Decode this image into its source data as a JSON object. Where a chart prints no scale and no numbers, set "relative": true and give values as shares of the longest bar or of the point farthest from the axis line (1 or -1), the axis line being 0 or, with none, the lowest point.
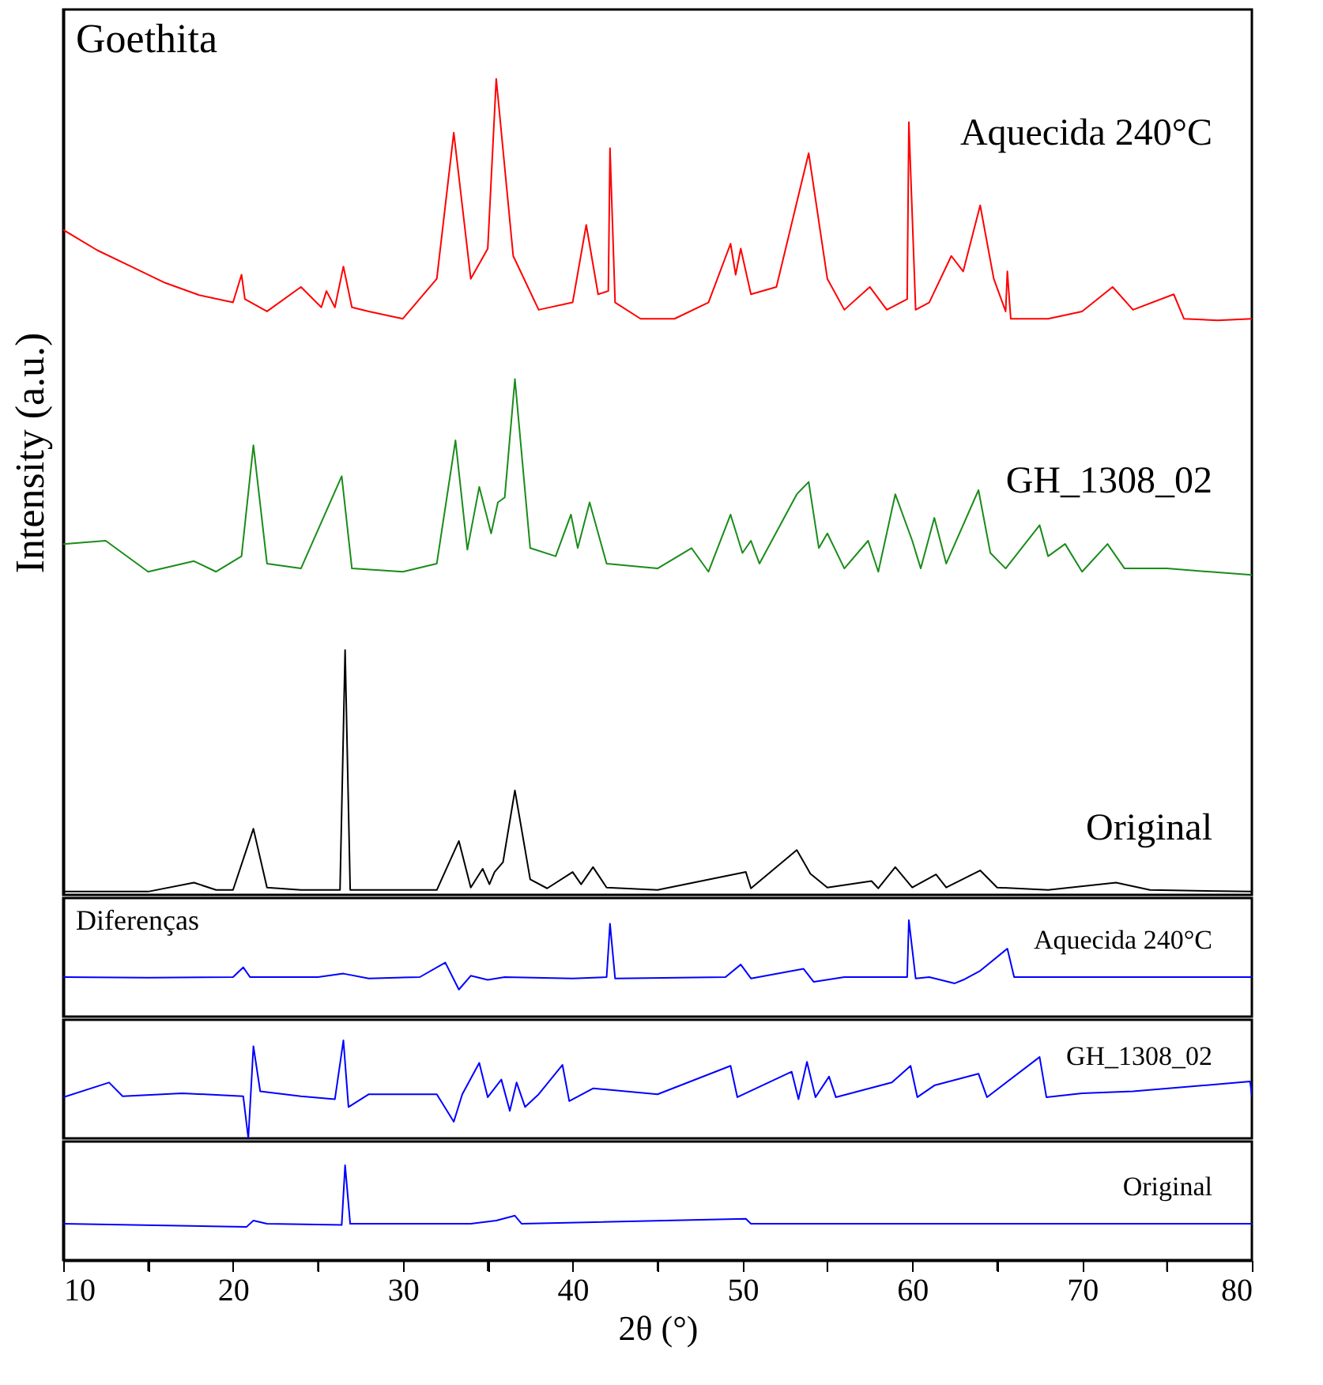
{
  "chart_data": [
    {
      "type": "line",
      "relative": true,
      "ylabel": "Intensity (a.u.)",
      "annotations": [
        "Goethita"
      ],
      "xlim": [
        10,
        80
      ],
      "tick_labels": false,
      "grid": false,
      "line_style": "solid",
      "series": [
        {
          "name": "Aquecida 240°C",
          "color": "#ff0000",
          "x": [
            10,
            12,
            14,
            16,
            18,
            20,
            20.5,
            20.7,
            22,
            24,
            25.2,
            25.5,
            26,
            26.5,
            27,
            28,
            30,
            32,
            33,
            34,
            35,
            35.5,
            36.5,
            38,
            40,
            40.8,
            41.5,
            42.1,
            42.2,
            42.5,
            44,
            46,
            48,
            49.3,
            49.6,
            49.9,
            50.5,
            52,
            53.9,
            55,
            56,
            57.5,
            58.5,
            59.7,
            59.8,
            60.2,
            61,
            62.3,
            63,
            64,
            64.8,
            65.5,
            65.6,
            65.8,
            66,
            68,
            70,
            71.8,
            73,
            75.4,
            76,
            78,
            80
          ],
          "values": [
            0.815,
            0.79,
            0.77,
            0.75,
            0.735,
            0.726,
            0.76,
            0.73,
            0.715,
            0.745,
            0.72,
            0.74,
            0.72,
            0.77,
            0.72,
            0.715,
            0.706,
            0.755,
            0.934,
            0.755,
            0.792,
            1,
            0.783,
            0.717,
            0.726,
            0.821,
            0.736,
            0.74,
            0.915,
            0.726,
            0.706,
            0.706,
            0.726,
            0.798,
            0.76,
            0.792,
            0.736,
            0.745,
            0.909,
            0.755,
            0.717,
            0.745,
            0.717,
            0.73,
            0.947,
            0.717,
            0.726,
            0.783,
            0.764,
            0.845,
            0.755,
            0.715,
            0.764,
            0.706,
            0.706,
            0.706,
            0.715,
            0.745,
            0.717,
            0.736,
            0.706,
            0.704,
            0.706
          ]
        },
        {
          "name": "GH_1308_02",
          "color": "#1a8c1a",
          "x": [
            10,
            12.5,
            15,
            17.7,
            19,
            20.5,
            21.2,
            22,
            24,
            26.4,
            27,
            30,
            32,
            33.1,
            33.8,
            34.5,
            35.2,
            35.6,
            36,
            36.6,
            37.5,
            39,
            39.9,
            40.3,
            41,
            42,
            45,
            47,
            48,
            49.3,
            50,
            50.5,
            51,
            53.2,
            53.9,
            54.5,
            55,
            56,
            57.4,
            58,
            59,
            60,
            60.5,
            61.3,
            62,
            63.9,
            64.6,
            65.5,
            67.5,
            68,
            69,
            70,
            71.5,
            72.5,
            75,
            80
          ],
          "values": [
            0.43,
            0.434,
            0.396,
            0.409,
            0.396,
            0.415,
            0.551,
            0.406,
            0.4,
            0.513,
            0.4,
            0.396,
            0.406,
            0.557,
            0.423,
            0.5,
            0.443,
            0.481,
            0.487,
            0.632,
            0.425,
            0.415,
            0.466,
            0.425,
            0.481,
            0.406,
            0.4,
            0.425,
            0.396,
            0.466,
            0.419,
            0.434,
            0.406,
            0.491,
            0.506,
            0.425,
            0.443,
            0.4,
            0.434,
            0.396,
            0.491,
            0.434,
            0.4,
            0.462,
            0.406,
            0.496,
            0.419,
            0.4,
            0.453,
            0.415,
            0.43,
            0.396,
            0.43,
            0.4,
            0.4,
            0.392
          ]
        },
        {
          "name": "Original",
          "color": "#000000",
          "x": [
            10,
            15,
            17.7,
            19,
            20,
            21.2,
            22,
            24,
            26.3,
            26.6,
            26.9,
            32,
            33.3,
            34,
            34.7,
            35.1,
            35.4,
            35.9,
            36.6,
            37.5,
            38.5,
            40,
            40.5,
            41.2,
            42,
            45,
            50.2,
            50.5,
            53.2,
            54,
            55,
            57.6,
            58,
            59,
            60,
            61.4,
            62,
            64,
            65,
            68,
            72,
            74,
            80
          ],
          "values": [
            0.004,
            0.004,
            0.015,
            0.006,
            0.006,
            0.081,
            0.009,
            0.006,
            0.006,
            0.3,
            0.006,
            0.006,
            0.066,
            0.009,
            0.032,
            0.013,
            0.028,
            0.04,
            0.128,
            0.019,
            0.008,
            0.028,
            0.013,
            0.034,
            0.009,
            0.006,
            0.028,
            0.008,
            0.055,
            0.026,
            0.009,
            0.017,
            0.008,
            0.034,
            0.009,
            0.025,
            0.009,
            0.03,
            0.009,
            0.006,
            0.015,
            0.006,
            0.004
          ]
        }
      ]
    },
    {
      "type": "line",
      "relative": true,
      "annotations": [
        "Diferenças"
      ],
      "xlim": [
        10,
        80
      ],
      "tick_labels": false,
      "grid": false,
      "line_style": "solid",
      "series": [
        {
          "name": "Aquecida 240°C",
          "color": "#0000ff",
          "x": [
            10,
            15,
            20,
            20.6,
            21,
            25,
            26.5,
            28,
            31,
            32.5,
            33.3,
            34,
            35,
            36,
            40,
            42,
            42.2,
            42.5,
            49,
            49.9,
            50.5,
            53.6,
            54.2,
            56,
            59.7,
            59.8,
            60.2,
            61,
            62.5,
            63,
            64,
            65.6,
            66,
            70,
            80
          ],
          "values": [
            0.41,
            0.403,
            0.41,
            0.511,
            0.41,
            0.41,
            0.446,
            0.396,
            0.41,
            0.561,
            0.281,
            0.424,
            0.381,
            0.41,
            0.396,
            0.41,
            0.964,
            0.396,
            0.41,
            0.54,
            0.396,
            0.496,
            0.36,
            0.41,
            0.41,
            1,
            0.396,
            0.41,
            0.345,
            0.381,
            0.475,
            0.705,
            0.41,
            0.41,
            0.41
          ]
        }
      ]
    },
    {
      "type": "line",
      "relative": true,
      "xlim": [
        10,
        80
      ],
      "tick_labels": false,
      "grid": false,
      "line_style": "solid",
      "series": [
        {
          "name": "GH_1308_02",
          "color": "#0000ff",
          "x": [
            10,
            12.7,
            13.5,
            17,
            20.6,
            20.9,
            21.2,
            21.6,
            24,
            26,
            26.5,
            26.8,
            28,
            32,
            33,
            33.5,
            34.5,
            35,
            35.8,
            36.3,
            36.7,
            37.2,
            38,
            39.4,
            39.8,
            41.2,
            45,
            49.3,
            49.7,
            52.9,
            53.3,
            53.8,
            54.3,
            55.1,
            55.5,
            58.8,
            59.9,
            60.3,
            61.3,
            63.9,
            64.4,
            67.5,
            67.9,
            70,
            73,
            79.9,
            80
          ],
          "values": [
            0.42,
            0.57,
            0.43,
            0.46,
            0.43,
            0,
            0.94,
            0.48,
            0.43,
            0.4,
            1,
            0.32,
            0.45,
            0.45,
            0.17,
            0.45,
            0.77,
            0.42,
            0.6,
            0.28,
            0.57,
            0.32,
            0.45,
            0.75,
            0.38,
            0.51,
            0.45,
            0.74,
            0.42,
            0.68,
            0.4,
            0.78,
            0.42,
            0.63,
            0.42,
            0.57,
            0.74,
            0.42,
            0.54,
            0.66,
            0.42,
            0.83,
            0.42,
            0.46,
            0.48,
            0.58,
            0.43
          ]
        }
      ]
    },
    {
      "type": "line",
      "relative": true,
      "xlabel": "2θ (°)",
      "xlim": [
        10,
        80
      ],
      "xticks": [
        10,
        {
          "value": 15,
          "label": null
        },
        20,
        {
          "value": 25,
          "label": null
        },
        30,
        {
          "value": 35,
          "label": null
        },
        40,
        {
          "value": 45,
          "label": null
        },
        50,
        {
          "value": 55,
          "label": null
        },
        60,
        {
          "value": 65,
          "label": null
        },
        70,
        {
          "value": 75,
          "label": null
        },
        80
      ],
      "tick_labels": "x",
      "grid": false,
      "line_style": "solid",
      "series": [
        {
          "name": "Original",
          "color": "#0000ff",
          "x": [
            10,
            20.8,
            21.2,
            22,
            26.4,
            26.6,
            26.9,
            34,
            35.5,
            36.6,
            37,
            50.2,
            50.5,
            80
          ],
          "values": [
            0.383,
            0.351,
            0.416,
            0.383,
            0.37,
            1,
            0.383,
            0.383,
            0.416,
            0.468,
            0.383,
            0.435,
            0.383,
            0.383
          ]
        }
      ]
    }
  ]
}
